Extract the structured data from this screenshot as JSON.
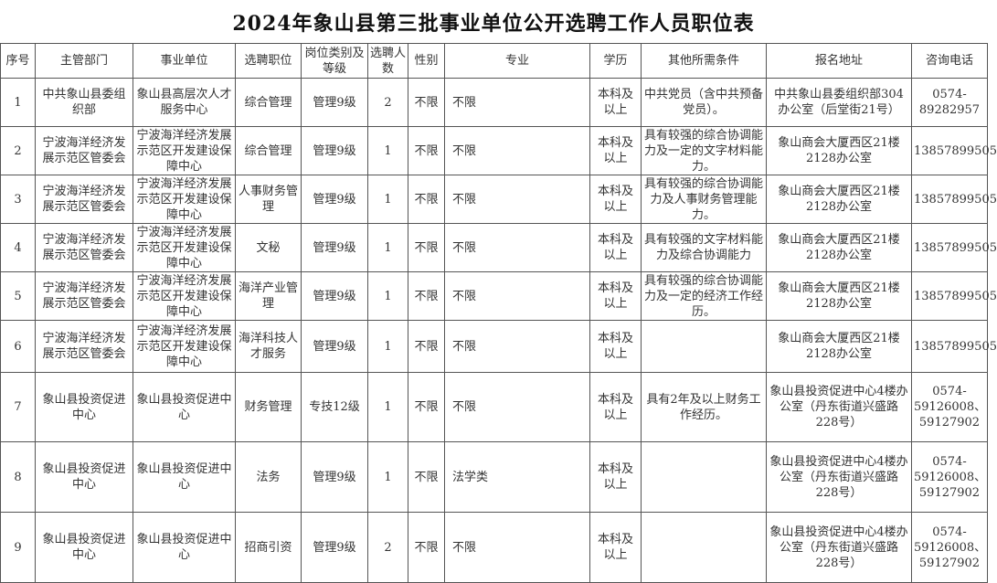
{
  "title": "2024年象山县第三批事业单位公开选聘工作人员职位表",
  "headers": [
    "序号",
    "主管部门",
    "事业单位",
    "选聘职位",
    "岗位类别及等级",
    "选聘人数",
    "性别",
    "专业",
    "学历",
    "其他所需条件",
    "报名地址",
    "咨询电话"
  ],
  "rows": [
    [
      "1",
      "中共象山县委组织部",
      "象山县高层次人才服务中心",
      "综合管理",
      "管理9级",
      "2",
      "不限",
      "不限",
      "本科及以上",
      "中共党员（含中共预备党员）。",
      "中共象山县委组织部304办公室（后堂街21号）",
      "0574-89282957"
    ],
    [
      "2",
      "宁波海洋经济发展示范区管委会",
      "宁波海洋经济发展示范区开发建设保障中心",
      "综合管理",
      "管理9级",
      "1",
      "不限",
      "不限",
      "本科及以上",
      "具有较强的综合协调能力及一定的文字材料能力。",
      "象山商会大厦西区21楼2128办公室",
      "13857899505"
    ],
    [
      "3",
      "宁波海洋经济发展示范区管委会",
      "宁波海洋经济发展示范区开发建设保障中心",
      "人事财务管理",
      "管理9级",
      "1",
      "不限",
      "不限",
      "本科及以上",
      "具有较强的综合协调能力及人事财务管理能力。",
      "象山商会大厦西区21楼2128办公室",
      "13857899505"
    ],
    [
      "4",
      "宁波海洋经济发展示范区管委会",
      "宁波海洋经济发展示范区开发建设保障中心",
      "文秘",
      "管理9级",
      "1",
      "不限",
      "不限",
      "本科及以上",
      "具有较强的文字材料能力及综合协调能力",
      "象山商会大厦西区21楼2128办公室",
      "13857899505"
    ],
    [
      "5",
      "宁波海洋经济发展示范区管委会",
      "宁波海洋经济发展示范区开发建设保障中心",
      "海洋产业管理",
      "管理9级",
      "1",
      "不限",
      "不限",
      "本科及以上",
      "具有较强的综合协调能力及一定的经济工作经历。",
      "象山商会大厦西区21楼2128办公室",
      "13857899505"
    ],
    [
      "6",
      "宁波海洋经济发展示范区管委会",
      "宁波海洋经济发展示范区开发建设保障中心",
      "海洋科技人才服务",
      "管理9级",
      "1",
      "不限",
      "不限",
      "本科及以上",
      "",
      "象山商会大厦西区21楼2128办公室",
      "13857899505"
    ],
    [
      "7",
      "象山县投资促进中心",
      "象山县投资促进中心",
      "财务管理",
      "专技12级",
      "1",
      "不限",
      "不限",
      "本科及以上",
      "具有2年及以上财务工作经历。",
      "象山县投资促进中心4楼办公室（丹东街道兴盛路228号）",
      "0574-59126008、59127902"
    ],
    [
      "8",
      "象山县投资促进中心",
      "象山县投资促进中心",
      "法务",
      "管理9级",
      "1",
      "不限",
      "法学类",
      "本科及以上",
      "",
      "象山县投资促进中心4楼办公室（丹东街道兴盛路228号）",
      "0574-59126008、59127902"
    ],
    [
      "9",
      "象山县投资促进中心",
      "象山县投资促进中心",
      "招商引资",
      "管理9级",
      "2",
      "不限",
      "不限",
      "本科及以上",
      "",
      "象山县投资促进中心4楼办公室（丹东街道兴盛路228号）",
      "0574-59126008、59127902"
    ]
  ]
}
